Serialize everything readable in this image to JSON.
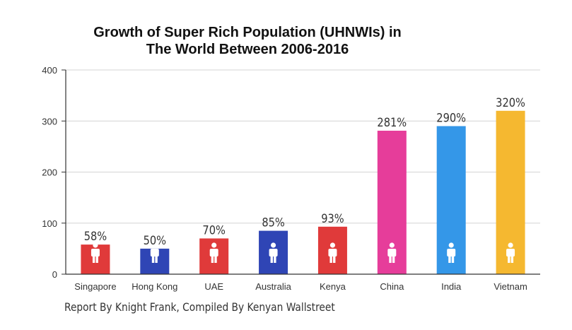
{
  "chart_data": {
    "type": "bar",
    "title_line1": "Growth of Super Rich Population (UHNWIs) in",
    "title_line2": "The World Between 2006-2016",
    "categories": [
      "Singapore",
      "Hong Kong",
      "UAE",
      "Australia",
      "Kenya",
      "China",
      "India",
      "Vietnam"
    ],
    "values": [
      58,
      50,
      70,
      85,
      93,
      281,
      290,
      320
    ],
    "labels": [
      "58%",
      "50%",
      "70%",
      "85%",
      "93%",
      "281%",
      "290%",
      "320%"
    ],
    "colors": [
      "#e03a3a",
      "#2f45b5",
      "#e03a3a",
      "#2f45b5",
      "#e03a3a",
      "#e63d9a",
      "#3497e8",
      "#f5b830"
    ],
    "yticks": [
      0,
      100,
      200,
      300,
      400
    ],
    "ylim": [
      0,
      400
    ],
    "grid": true,
    "bar_icon": "person-icon"
  },
  "footer": "Report By Knight Frank, Compiled By Kenyan Wallstreet"
}
